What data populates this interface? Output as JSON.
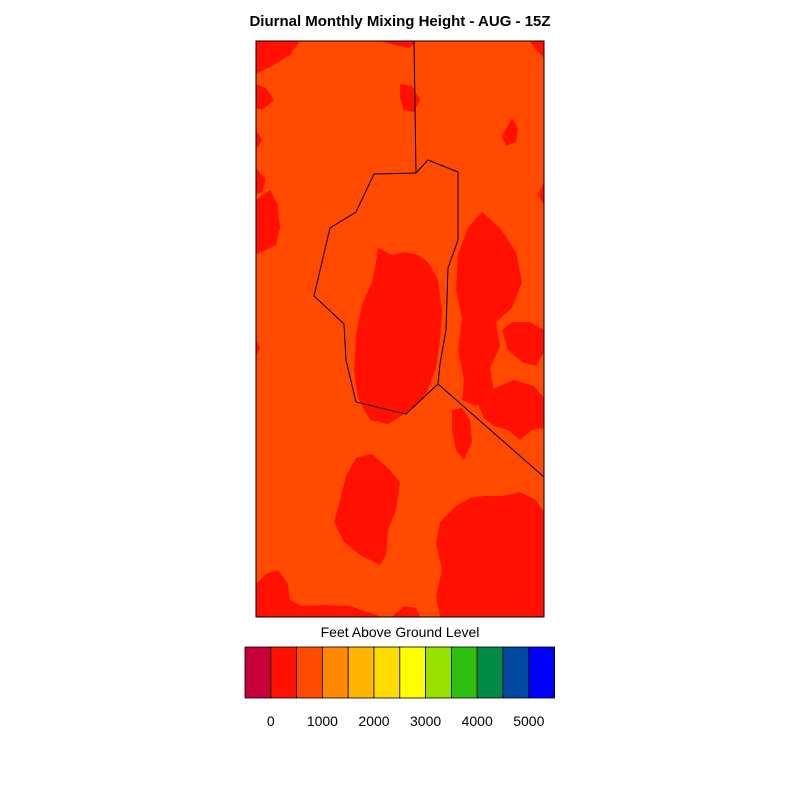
{
  "title": "Diurnal Monthly Mixing Height - AUG - 15Z",
  "colorbar": {
    "label": "Feet Above Ground Level",
    "colors": [
      "#C8003C",
      "#FF1000",
      "#FF4A00",
      "#FF8A00",
      "#FFB400",
      "#FFDC00",
      "#FFFF00",
      "#99E000",
      "#2EBF10",
      "#008A46",
      "#0048A0",
      "#0000FF"
    ],
    "tick_labels": [
      "0",
      "1000",
      "2000",
      "3000",
      "4000",
      "5000"
    ]
  },
  "map": {
    "fill_colors": {
      "base": "#FF4A00",
      "high": "#FF1000"
    }
  }
}
